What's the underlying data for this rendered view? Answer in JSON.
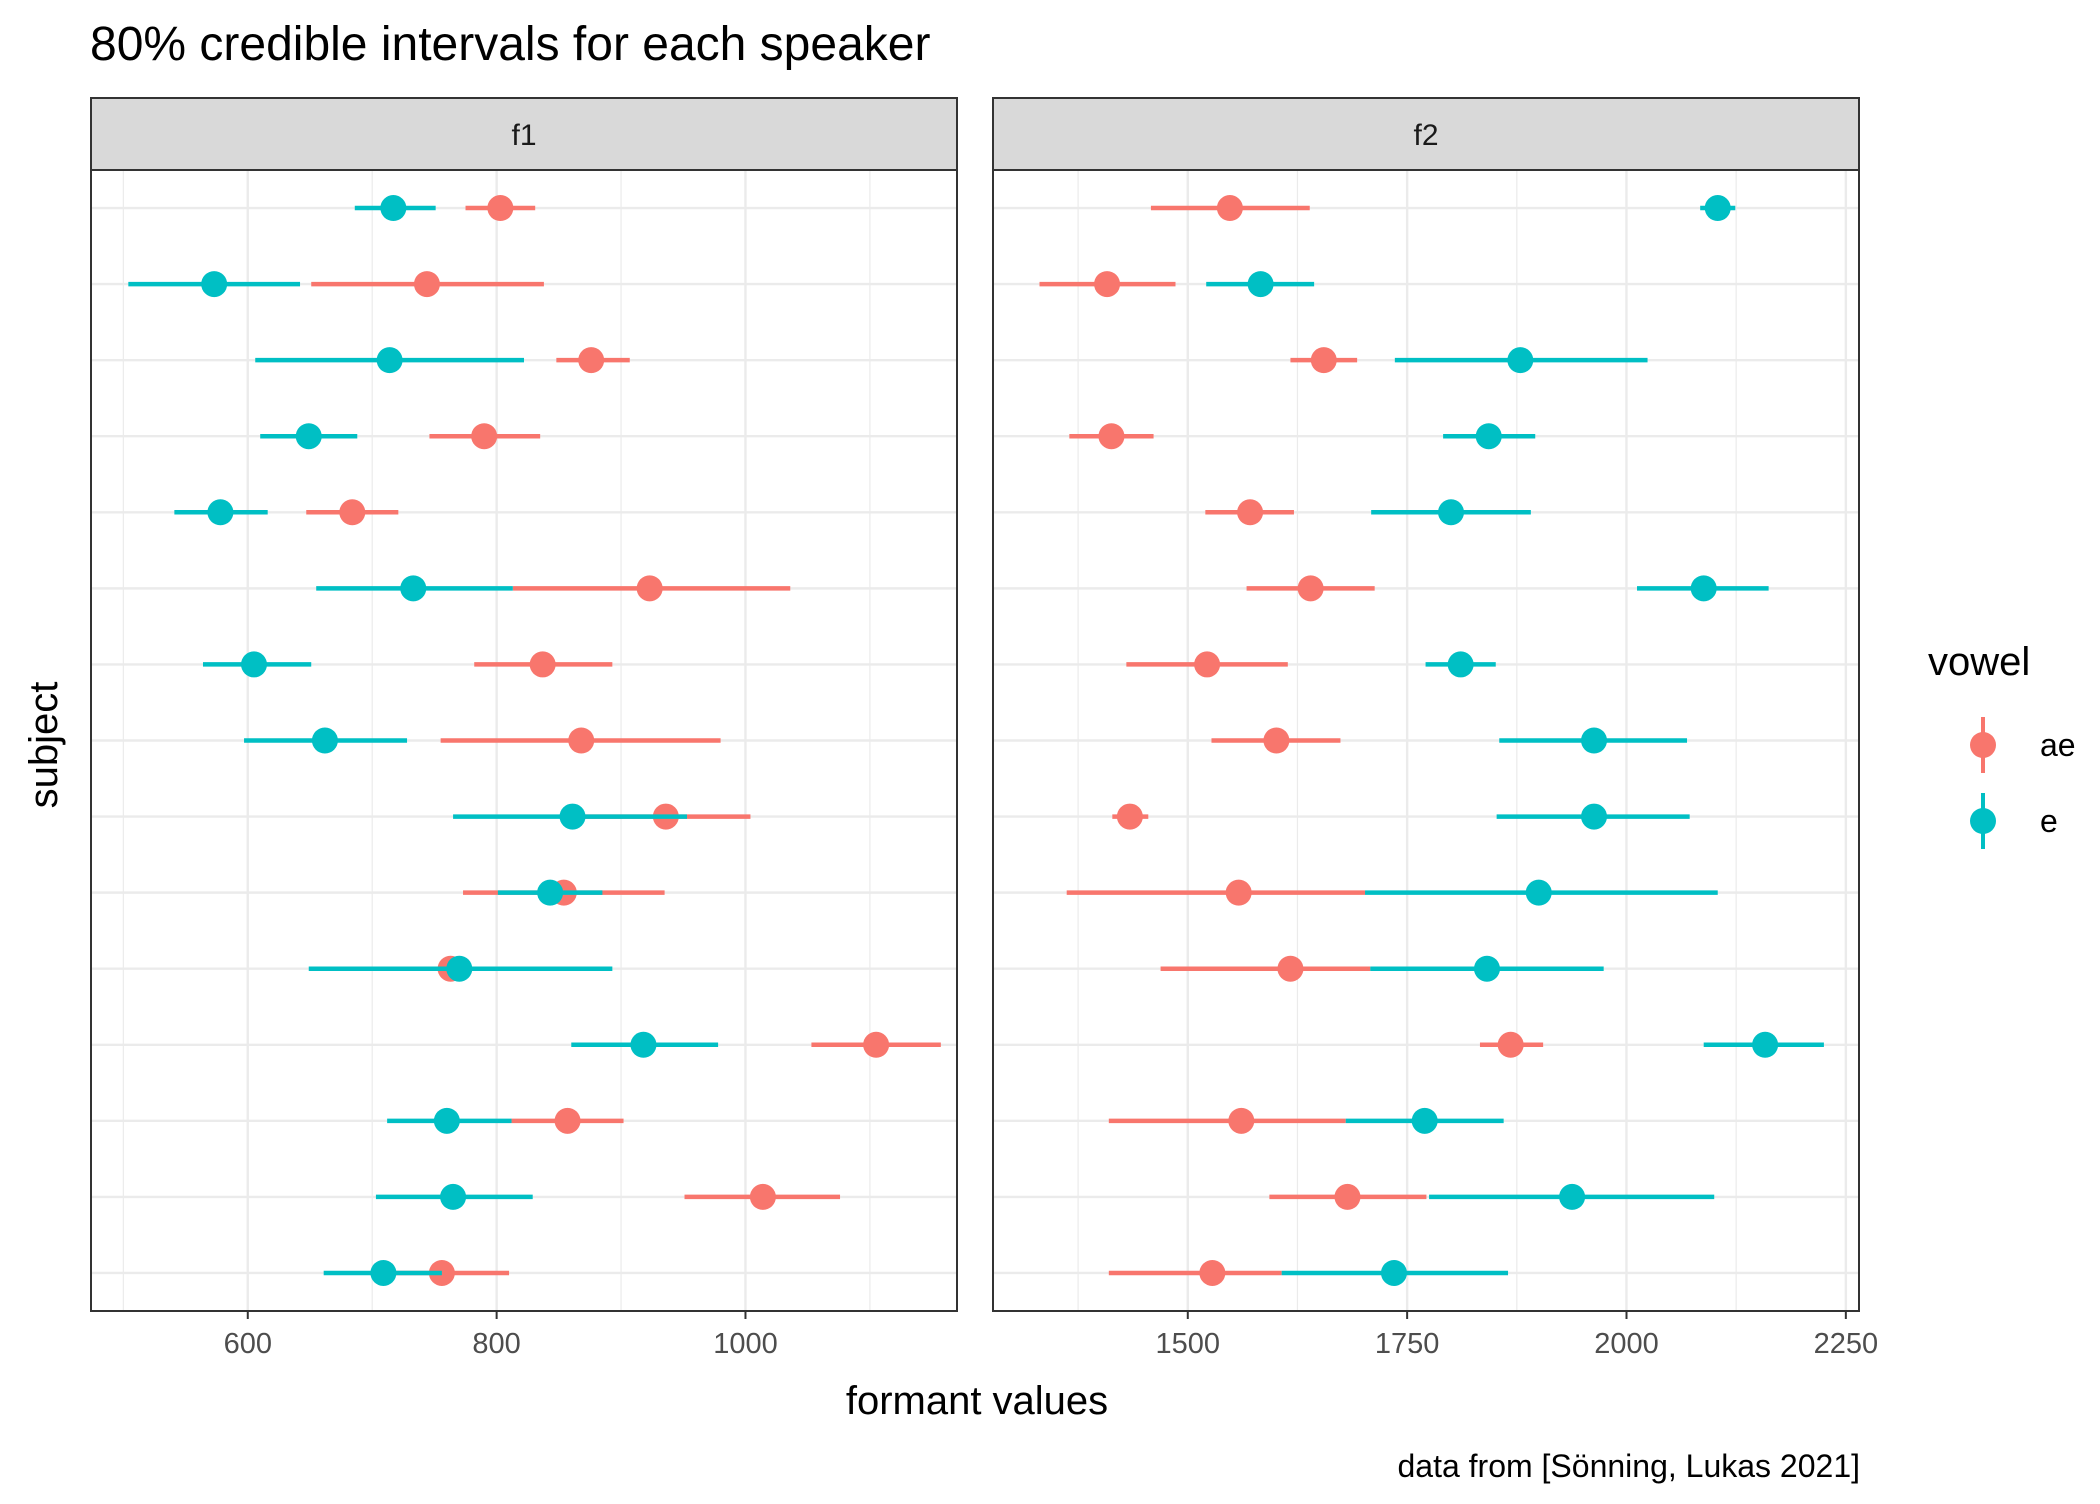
{
  "chart_data": {
    "type": "pointrange",
    "title": "80% credible intervals for each speaker",
    "caption": "data from  [Sönning, Lukas 2021]",
    "xlabel": "formant values",
    "ylabel": "subject",
    "legend": {
      "title": "vowel",
      "placement": "right",
      "entries": [
        {
          "label": "ae",
          "color": "#F8766D"
        },
        {
          "label": "e",
          "color": "#00BFC4"
        }
      ]
    },
    "panels": [
      {
        "label": "f1",
        "xlim": [
          474,
          1170
        ],
        "xticks": [
          600,
          800,
          1000
        ],
        "xtick_labels": [
          "600",
          "800",
          "1000"
        ],
        "xminor": [
          500,
          700,
          900,
          1100
        ],
        "series": [
          {
            "name": "ae",
            "color": "#F8766D",
            "points": [
              {
                "row": 1,
                "estimate": 803,
                "lower": 775,
                "upper": 831
              },
              {
                "row": 2,
                "estimate": 744,
                "lower": 651,
                "upper": 838
              },
              {
                "row": 3,
                "estimate": 876,
                "lower": 848,
                "upper": 907
              },
              {
                "row": 4,
                "estimate": 790,
                "lower": 746,
                "upper": 835
              },
              {
                "row": 5,
                "estimate": 684,
                "lower": 647,
                "upper": 721
              },
              {
                "row": 6,
                "estimate": 923,
                "lower": 813,
                "upper": 1036
              },
              {
                "row": 7,
                "estimate": 837,
                "lower": 782,
                "upper": 893
              },
              {
                "row": 8,
                "estimate": 868,
                "lower": 755,
                "upper": 980
              },
              {
                "row": 9,
                "estimate": 936,
                "lower": 860,
                "upper": 1004
              },
              {
                "row": 10,
                "estimate": 854,
                "lower": 773,
                "upper": 935
              },
              {
                "row": 11,
                "estimate": 763,
                "lower": 706,
                "upper": 820
              },
              {
                "row": 12,
                "estimate": 1105,
                "lower": 1053,
                "upper": 1157
              },
              {
                "row": 13,
                "estimate": 857,
                "lower": 812,
                "upper": 902
              },
              {
                "row": 14,
                "estimate": 1014,
                "lower": 951,
                "upper": 1076
              },
              {
                "row": 15,
                "estimate": 756,
                "lower": 702,
                "upper": 810
              }
            ]
          },
          {
            "name": "e",
            "color": "#00BFC4",
            "points": [
              {
                "row": 1,
                "estimate": 717,
                "lower": 686,
                "upper": 751
              },
              {
                "row": 2,
                "estimate": 573,
                "lower": 504,
                "upper": 642
              },
              {
                "row": 3,
                "estimate": 714,
                "lower": 606,
                "upper": 822
              },
              {
                "row": 4,
                "estimate": 649,
                "lower": 610,
                "upper": 688
              },
              {
                "row": 5,
                "estimate": 578,
                "lower": 541,
                "upper": 616
              },
              {
                "row": 6,
                "estimate": 733,
                "lower": 655,
                "upper": 813
              },
              {
                "row": 7,
                "estimate": 605,
                "lower": 564,
                "upper": 651
              },
              {
                "row": 8,
                "estimate": 662,
                "lower": 597,
                "upper": 728
              },
              {
                "row": 9,
                "estimate": 861,
                "lower": 765,
                "upper": 953
              },
              {
                "row": 10,
                "estimate": 843,
                "lower": 801,
                "upper": 885
              },
              {
                "row": 11,
                "estimate": 770,
                "lower": 649,
                "upper": 893
              },
              {
                "row": 12,
                "estimate": 918,
                "lower": 860,
                "upper": 978
              },
              {
                "row": 13,
                "estimate": 760,
                "lower": 712,
                "upper": 812
              },
              {
                "row": 14,
                "estimate": 765,
                "lower": 703,
                "upper": 829
              },
              {
                "row": 15,
                "estimate": 709,
                "lower": 661,
                "upper": 756
              }
            ]
          }
        ]
      },
      {
        "label": "f2",
        "xlim": [
          1278,
          2265
        ],
        "xticks": [
          1500,
          1750,
          2000,
          2250
        ],
        "xtick_labels": [
          "1500",
          "1750",
          "2000",
          "2250"
        ],
        "xminor": [
          1375,
          1625,
          1875,
          2125
        ],
        "series": [
          {
            "name": "ae",
            "color": "#F8766D",
            "points": [
              {
                "row": 1,
                "estimate": 1548,
                "lower": 1458,
                "upper": 1639
              },
              {
                "row": 2,
                "estimate": 1408,
                "lower": 1331,
                "upper": 1486
              },
              {
                "row": 3,
                "estimate": 1655,
                "lower": 1617,
                "upper": 1693
              },
              {
                "row": 4,
                "estimate": 1413,
                "lower": 1365,
                "upper": 1461
              },
              {
                "row": 5,
                "estimate": 1571,
                "lower": 1520,
                "upper": 1621
              },
              {
                "row": 6,
                "estimate": 1640,
                "lower": 1567,
                "upper": 1713
              },
              {
                "row": 7,
                "estimate": 1522,
                "lower": 1430,
                "upper": 1614
              },
              {
                "row": 8,
                "estimate": 1601,
                "lower": 1527,
                "upper": 1674
              },
              {
                "row": 9,
                "estimate": 1434,
                "lower": 1414,
                "upper": 1455
              },
              {
                "row": 10,
                "estimate": 1558,
                "lower": 1362,
                "upper": 1702
              },
              {
                "row": 11,
                "estimate": 1617,
                "lower": 1469,
                "upper": 1708
              },
              {
                "row": 12,
                "estimate": 1868,
                "lower": 1833,
                "upper": 1905
              },
              {
                "row": 13,
                "estimate": 1561,
                "lower": 1410,
                "upper": 1680
              },
              {
                "row": 14,
                "estimate": 1682,
                "lower": 1593,
                "upper": 1772
              },
              {
                "row": 15,
                "estimate": 1528,
                "lower": 1410,
                "upper": 1607
              }
            ]
          },
          {
            "name": "e",
            "color": "#00BFC4",
            "points": [
              {
                "row": 1,
                "estimate": 2104,
                "lower": 2084,
                "upper": 2124
              },
              {
                "row": 2,
                "estimate": 1583,
                "lower": 1521,
                "upper": 1644
              },
              {
                "row": 3,
                "estimate": 1879,
                "lower": 1736,
                "upper": 2024
              },
              {
                "row": 4,
                "estimate": 1843,
                "lower": 1791,
                "upper": 1896
              },
              {
                "row": 5,
                "estimate": 1800,
                "lower": 1709,
                "upper": 1891
              },
              {
                "row": 6,
                "estimate": 2088,
                "lower": 2012,
                "upper": 2162
              },
              {
                "row": 7,
                "estimate": 1811,
                "lower": 1771,
                "upper": 1851
              },
              {
                "row": 8,
                "estimate": 1963,
                "lower": 1855,
                "upper": 2069
              },
              {
                "row": 9,
                "estimate": 1963,
                "lower": 1852,
                "upper": 2072
              },
              {
                "row": 10,
                "estimate": 1900,
                "lower": 1702,
                "upper": 2104
              },
              {
                "row": 11,
                "estimate": 1841,
                "lower": 1708,
                "upper": 1974
              },
              {
                "row": 12,
                "estimate": 2158,
                "lower": 2088,
                "upper": 2225
              },
              {
                "row": 13,
                "estimate": 1770,
                "lower": 1680,
                "upper": 1860
              },
              {
                "row": 14,
                "estimate": 1938,
                "lower": 1775,
                "upper": 2100
              },
              {
                "row": 15,
                "estimate": 1735,
                "lower": 1607,
                "upper": 1865
              }
            ]
          }
        ]
      }
    ],
    "n_rows": 15,
    "grid": true
  }
}
